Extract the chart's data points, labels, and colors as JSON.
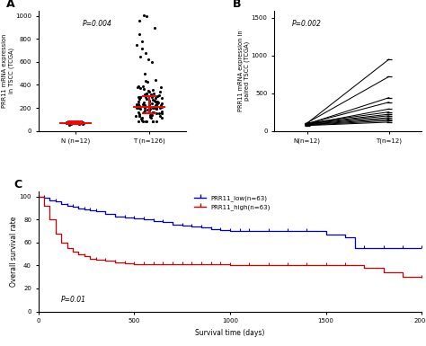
{
  "panel_A": {
    "label": "A",
    "ylabel": "PRR11 mRNA expression\nin TSCC (TCGA)",
    "pvalue": "P=0.004",
    "groups": [
      "N (n=12)",
      "T (n=126)"
    ],
    "N_median": 68,
    "T_median": 210,
    "N_q1": 58,
    "N_q3": 80,
    "T_q1": 150,
    "T_q3": 300,
    "ylim": [
      0,
      1050
    ],
    "yticks": [
      0,
      200,
      400,
      600,
      800,
      1000
    ]
  },
  "panel_B": {
    "label": "B",
    "ylabel": "PRR11 mRNA expression in\npaired TSCC (TCGA)",
    "pvalue": "P=0.002",
    "xlabels": [
      "N(n=12)",
      "T(n=12)"
    ],
    "pairs": [
      [
        100,
        950
      ],
      [
        105,
        720
      ],
      [
        90,
        440
      ],
      [
        95,
        380
      ],
      [
        85,
        290
      ],
      [
        100,
        250
      ],
      [
        95,
        220
      ],
      [
        90,
        200
      ],
      [
        85,
        175
      ],
      [
        80,
        155
      ],
      [
        75,
        135
      ],
      [
        70,
        115
      ]
    ],
    "ylim": [
      0,
      1600
    ],
    "yticks": [
      0,
      500,
      1000,
      1500
    ]
  },
  "panel_C": {
    "label": "C",
    "xlabel": "Survival time (days)",
    "ylabel": "Overall survival rate",
    "pvalue": "P=0.01",
    "low_label": "PRR11_low(n=63)",
    "high_label": "PRR11_high(n=63)",
    "low_color": "#0000cc",
    "high_color": "#cc0000",
    "low_x": [
      0,
      30,
      60,
      90,
      120,
      150,
      180,
      210,
      240,
      270,
      300,
      350,
      400,
      450,
      500,
      550,
      600,
      650,
      700,
      750,
      800,
      850,
      900,
      950,
      1000,
      1050,
      1100,
      1200,
      1300,
      1400,
      1500,
      1600,
      1650,
      1700,
      1800,
      1900,
      2000
    ],
    "low_y": [
      100,
      99,
      97,
      96,
      94,
      92,
      91,
      90,
      89,
      88,
      87,
      85,
      83,
      82,
      81,
      80,
      79,
      78,
      76,
      75,
      74,
      73,
      72,
      71,
      70,
      70,
      70,
      70,
      70,
      70,
      67,
      65,
      55,
      55,
      55,
      55,
      55
    ],
    "high_x": [
      0,
      30,
      60,
      90,
      120,
      150,
      180,
      210,
      240,
      270,
      300,
      350,
      400,
      450,
      500,
      550,
      600,
      650,
      700,
      750,
      800,
      850,
      900,
      950,
      1000,
      1100,
      1200,
      1300,
      1400,
      1500,
      1600,
      1700,
      1800,
      1900,
      2000
    ],
    "high_y": [
      100,
      92,
      80,
      68,
      60,
      55,
      52,
      50,
      48,
      46,
      45,
      44,
      43,
      42,
      41,
      41,
      41,
      41,
      41,
      41,
      41,
      41,
      41,
      41,
      40,
      40,
      40,
      40,
      40,
      40,
      40,
      38,
      34,
      30,
      29
    ],
    "xlim": [
      0,
      2000
    ],
    "ylim": [
      0,
      105
    ],
    "yticks": [
      0,
      20,
      40,
      60,
      80,
      100
    ],
    "xticks": [
      0,
      500,
      1000,
      1500,
      2000
    ]
  },
  "bg_color": "#ffffff",
  "dot_color": "#000000",
  "median_color": "#ff0000"
}
